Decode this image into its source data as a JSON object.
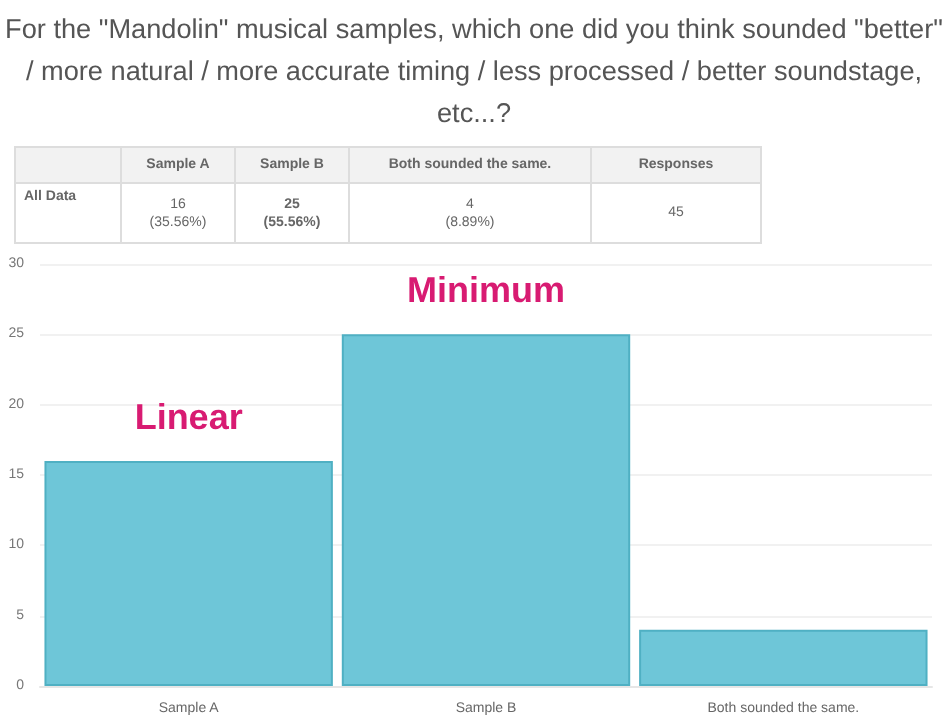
{
  "chart_data": {
    "type": "bar",
    "title": "For the \"Mandolin\" musical samples, which one did you think sounded \"better\" / more natural / more accurate timing / less processed / better soundstage, etc...?",
    "categories": [
      "Sample A",
      "Sample B",
      "Both sounded the same."
    ],
    "values": [
      16,
      25,
      4
    ],
    "color": "#6ec6d8",
    "ylim": [
      0,
      30
    ],
    "yticks": [
      0,
      5,
      10,
      15,
      20,
      25,
      30
    ],
    "grid": "y",
    "annotations": [
      "All Data",
      "16\n(35.56%)",
      "25\n(55.56%)",
      "4\n(8.89%)",
      "Responses",
      "45",
      "Linear",
      "Minimum"
    ]
  }
}
